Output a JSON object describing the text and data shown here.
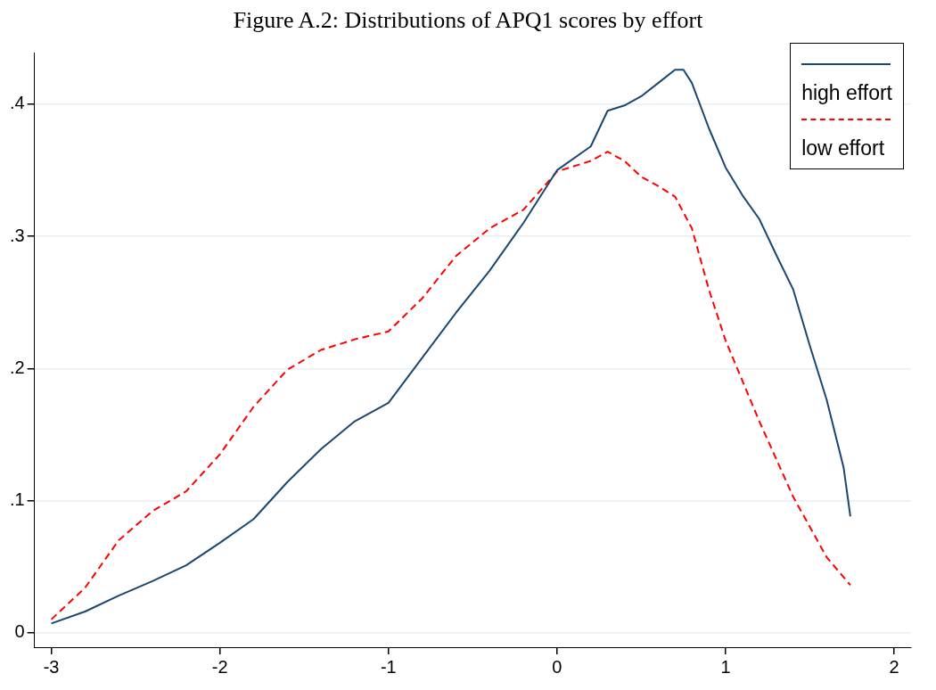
{
  "chart_data": {
    "type": "line",
    "title": "Figure A.2: Distributions of APQ1 scores by effort",
    "xlim": [
      -3.1,
      2.1
    ],
    "xticks": [
      -3,
      -2,
      -1,
      0,
      1,
      2
    ],
    "ylim": [
      -0.011,
      0.439
    ],
    "yticks": [
      {
        "value": 0,
        "label": "0"
      },
      {
        "value": 0.1,
        "label": ".1"
      },
      {
        "value": 0.2,
        "label": ".2"
      },
      {
        "value": 0.3,
        "label": ".3"
      },
      {
        "value": 0.4,
        "label": ".4"
      }
    ],
    "grid": "y",
    "legend": "top right",
    "marker": "none",
    "series": [
      {
        "name": "high effort",
        "color": "#1a476f",
        "line_style": "solid",
        "x": [
          -3,
          -2.8,
          -2.6,
          -2.4,
          -2.2,
          -2,
          -1.8,
          -1.6,
          -1.4,
          -1.2,
          -1,
          -0.8,
          -0.6,
          -0.4,
          -0.2,
          0,
          0.2,
          0.3,
          0.4,
          0.5,
          0.6,
          0.7,
          0.75,
          0.8,
          0.9,
          1,
          1.1,
          1.2,
          1.3,
          1.4,
          1.5,
          1.6,
          1.7,
          1.74
        ],
        "values": [
          0.007,
          0.016,
          0.028,
          0.039,
          0.051,
          0.068,
          0.086,
          0.114,
          0.139,
          0.16,
          0.174,
          0.208,
          0.242,
          0.274,
          0.31,
          0.35,
          0.368,
          0.395,
          0.399,
          0.406,
          0.416,
          0.426,
          0.426,
          0.416,
          0.382,
          0.352,
          0.331,
          0.313,
          0.286,
          0.26,
          0.217,
          0.176,
          0.125,
          0.088
        ]
      },
      {
        "name": "low effort",
        "color": "#ff0000",
        "line_style": "dashed",
        "x": [
          -3,
          -2.8,
          -2.6,
          -2.4,
          -2.2,
          -2,
          -1.8,
          -1.6,
          -1.4,
          -1.2,
          -1,
          -0.8,
          -0.6,
          -0.4,
          -0.2,
          0,
          0.2,
          0.3,
          0.4,
          0.5,
          0.6,
          0.7,
          0.8,
          0.9,
          1,
          1.2,
          1.4,
          1.6,
          1.74
        ],
        "values": [
          0.01,
          0.034,
          0.07,
          0.092,
          0.107,
          0.135,
          0.171,
          0.199,
          0.214,
          0.222,
          0.228,
          0.253,
          0.285,
          0.306,
          0.32,
          0.349,
          0.357,
          0.364,
          0.357,
          0.345,
          0.338,
          0.33,
          0.306,
          0.26,
          0.221,
          0.16,
          0.103,
          0.057,
          0.036
        ]
      }
    ]
  }
}
